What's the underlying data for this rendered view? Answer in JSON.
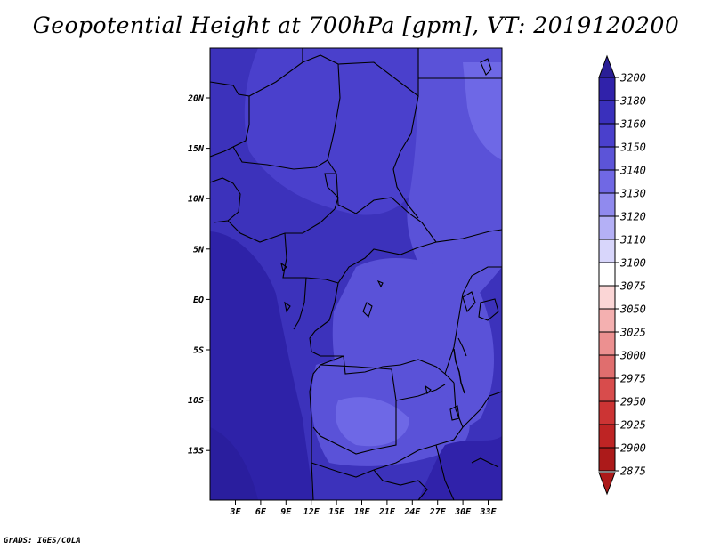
{
  "title": "Geopotential Height at 700hPa [gpm], VT: 2019120200",
  "credit": "GrADS: IGES/COLA",
  "map": {
    "lat_labels": [
      "20N",
      "15N",
      "10N",
      "5N",
      "EQ",
      "5S",
      "10S",
      "15S"
    ],
    "lon_labels": [
      "3E",
      "6E",
      "9E",
      "12E",
      "15E",
      "18E",
      "21E",
      "24E",
      "27E",
      "30E",
      "33E"
    ],
    "fill_colors": {
      "deep": "#2e22a8",
      "mid": "#3c32bb",
      "light": "#4a40cc",
      "lighter": "#5a52d8",
      "lightest": "#6e68e6"
    },
    "border_color": "#000000"
  },
  "colorbar": {
    "labels": [
      "3200",
      "3180",
      "3160",
      "3150",
      "3140",
      "3130",
      "3120",
      "3110",
      "3100",
      "3075",
      "3050",
      "3025",
      "3000",
      "2975",
      "2950",
      "2925",
      "2900",
      "2875"
    ],
    "colors": [
      "#2a1e96",
      "#3022aa",
      "#3a30bc",
      "#4a40cc",
      "#5c54d8",
      "#7068e4",
      "#908aee",
      "#b4b0f6",
      "#d8d6fb",
      "#ffffff",
      "#fbd6d6",
      "#f4b0b0",
      "#ec9090",
      "#e06e6e",
      "#d84c4c",
      "#cc3434",
      "#be2424",
      "#ac1a1a"
    ]
  }
}
